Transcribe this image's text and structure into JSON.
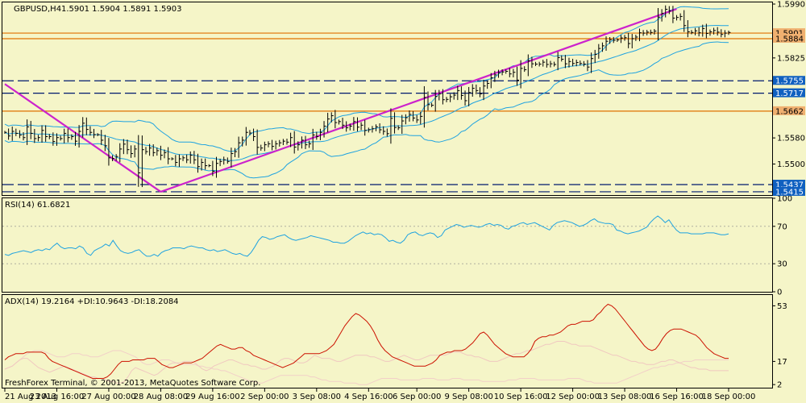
{
  "header": {
    "symbol": "GBPUSD,H4",
    "ohlc": "1.5901 1.5904 1.5891 1.5903"
  },
  "footer": {
    "copyright": "FreshForex Terminal, © 2001-2013, MetaQuotes Software Corp."
  },
  "colors": {
    "background": "#F5F5C8",
    "grid": "#000000",
    "bars": "#000000",
    "bollinger": "#1FA3E0",
    "trendline": "#CC22CC",
    "level_line": "#E07000",
    "rsi": "#1FA3E0",
    "adx": "#CC1100",
    "plus_di": "#F0C8C0",
    "minus_di": "#F2D0C8",
    "label_orange_bg": "#F0B070",
    "label_blue_bg": "#1060C0"
  },
  "chart_data": [
    {
      "type": "candlestick",
      "title": "GBPUSD,H4",
      "x_ticks": [
        "21 Aug 2013",
        "23 Aug 16:00",
        "27 Aug 00:00",
        "28 Aug 08:00",
        "29 Aug 16:00",
        "2 Sep 00:00",
        "3 Sep 08:00",
        "4 Sep 16:00",
        "6 Sep 00:00",
        "9 Sep 08:00",
        "10 Sep 16:00",
        "12 Sep 00:00",
        "13 Sep 08:00",
        "16 Sep 16:00",
        "18 Sep 00:00"
      ],
      "y_ticks": [
        1.5415,
        1.5437,
        1.55,
        1.558,
        1.5662,
        1.5717,
        1.5755,
        1.5825,
        1.5884,
        1.5901,
        1.599
      ],
      "ylim": [
        1.5405,
        1.5995
      ],
      "ohlc_values": [
        1.5901,
        1.5904,
        1.5891,
        1.5903
      ],
      "price_labels": [
        {
          "value": 1.5901,
          "text": "1.5901",
          "style": "orange"
        },
        {
          "value": 1.5884,
          "text": "1.5884",
          "style": "orange"
        },
        {
          "value": 1.5755,
          "text": "1.5755",
          "style": "blue"
        },
        {
          "value": 1.5717,
          "text": "1.5717",
          "style": "blue"
        },
        {
          "value": 1.5662,
          "text": "1.5662",
          "style": "orange"
        },
        {
          "value": 1.5437,
          "text": "1.5437",
          "style": "blue"
        },
        {
          "value": 1.5415,
          "text": "1.5415",
          "style": "blue"
        }
      ],
      "close": [
        1.5597,
        1.5586,
        1.56,
        1.5594,
        1.5589,
        1.5581,
        1.5614,
        1.5594,
        1.5578,
        1.5581,
        1.5603,
        1.5584,
        1.5584,
        1.5569,
        1.5581,
        1.5578,
        1.5594,
        1.5581,
        1.5584,
        1.557,
        1.56,
        1.5625,
        1.5606,
        1.5597,
        1.559,
        1.559,
        1.5573,
        1.5556,
        1.5519,
        1.5517,
        1.5523,
        1.5546,
        1.5561,
        1.5544,
        1.5532,
        1.5546,
        1.5473,
        1.5544,
        1.5538,
        1.5549,
        1.5535,
        1.5541,
        1.5527,
        1.5535,
        1.5516,
        1.5516,
        1.5505,
        1.5516,
        1.5519,
        1.5513,
        1.5527,
        1.5513,
        1.5492,
        1.5505,
        1.5495,
        1.5495,
        1.5478,
        1.5502,
        1.5508,
        1.5513,
        1.5508,
        1.5532,
        1.5538,
        1.5565,
        1.5573,
        1.5597,
        1.5595,
        1.5584,
        1.5551,
        1.5549,
        1.5559,
        1.5562,
        1.5554,
        1.5562,
        1.5565,
        1.557,
        1.5567,
        1.5581,
        1.5552,
        1.5559,
        1.5573,
        1.5559,
        1.5562,
        1.5589,
        1.5584,
        1.5597,
        1.5616,
        1.5638,
        1.5648,
        1.5627,
        1.563,
        1.5619,
        1.5611,
        1.5616,
        1.563,
        1.5613,
        1.5619,
        1.5603,
        1.5605,
        1.5608,
        1.5614,
        1.5605,
        1.56,
        1.5593,
        1.564,
        1.5612,
        1.5611,
        1.5632,
        1.5642,
        1.5652,
        1.5641,
        1.5635,
        1.5646,
        1.5704,
        1.5682,
        1.568,
        1.5707,
        1.5715,
        1.5697,
        1.5698,
        1.5706,
        1.5711,
        1.5725,
        1.571,
        1.5694,
        1.5719,
        1.5732,
        1.5725,
        1.5715,
        1.5739,
        1.5747,
        1.5764,
        1.5773,
        1.578,
        1.5782,
        1.5784,
        1.5776,
        1.5781,
        1.5757,
        1.5793,
        1.5789,
        1.5816,
        1.5807,
        1.5806,
        1.5806,
        1.5812,
        1.5805,
        1.5807,
        1.5805,
        1.5826,
        1.5821,
        1.5807,
        1.5814,
        1.5808,
        1.5811,
        1.5808,
        1.5806,
        1.5797,
        1.5823,
        1.5836,
        1.5854,
        1.5862,
        1.5876,
        1.5881,
        1.5879,
        1.588,
        1.5886,
        1.5887,
        1.5869,
        1.5884,
        1.5889,
        1.5902,
        1.5901,
        1.5904,
        1.5903,
        1.5907,
        1.595,
        1.5961,
        1.5974,
        1.5969,
        1.5947,
        1.5949,
        1.5952,
        1.5924,
        1.5905,
        1.5903,
        1.5908,
        1.5902,
        1.5915,
        1.59,
        1.5905,
        1.5909,
        1.5904,
        1.5897,
        1.5901,
        1.5903
      ],
      "trendlines": [
        {
          "x": [
            "21 Aug 2013",
            "28 Aug 08:00"
          ],
          "y": [
            1.5745,
            1.5415
          ],
          "label": ""
        },
        {
          "x": [
            "28 Aug 08:00",
            "16 Sep 16:00"
          ],
          "y": [
            1.5415,
            1.5975
          ],
          "label": ""
        }
      ],
      "grid": false
    },
    {
      "type": "line",
      "title": "RSI(14) 61.6821",
      "ylim": [
        0,
        100
      ],
      "y_ticks": [
        0,
        30,
        70,
        100
      ],
      "series": [
        {
          "name": "RSI(14)",
          "values": [
            40,
            39,
            41,
            42,
            43,
            44,
            43,
            42,
            44,
            45,
            44,
            46,
            45,
            49,
            52,
            48,
            46,
            47,
            47,
            46,
            49,
            47,
            41,
            39,
            44,
            46,
            48,
            51,
            49,
            55,
            49,
            44,
            42,
            41,
            42,
            44,
            45,
            41,
            38,
            38,
            40,
            38,
            42,
            44,
            45,
            47,
            47,
            47,
            46,
            48,
            49,
            48,
            47,
            47,
            45,
            44,
            45,
            43,
            44,
            45,
            43,
            41,
            40,
            41,
            39,
            38,
            42,
            48,
            55,
            59,
            58,
            56,
            57,
            59,
            60,
            61,
            58,
            56,
            55,
            56,
            57,
            58,
            60,
            59,
            58,
            57,
            56,
            55,
            53,
            53,
            52,
            52,
            54,
            57,
            60,
            62,
            64,
            62,
            63,
            61,
            62,
            61,
            58,
            54,
            55,
            53,
            52,
            55,
            61,
            63,
            64,
            61,
            60,
            62,
            63,
            62,
            58,
            60,
            66,
            68,
            70,
            72,
            71,
            69,
            70,
            71,
            70,
            69,
            70,
            72,
            73,
            71,
            72,
            71,
            68,
            67,
            70,
            71,
            73,
            74,
            72,
            73,
            74,
            72,
            70,
            68,
            66,
            71,
            74,
            75,
            76,
            75,
            74,
            72,
            70,
            71,
            73,
            76,
            78,
            75,
            74,
            73,
            73,
            72,
            66,
            65,
            63,
            62,
            63,
            64,
            65,
            67,
            69,
            74,
            78,
            81,
            78,
            74,
            77,
            71,
            66,
            63,
            63,
            63,
            62,
            62,
            62,
            62,
            63,
            63,
            63,
            62,
            61,
            61,
            62
          ]
        }
      ]
    },
    {
      "type": "line",
      "title": "ADX(14) 19.2164 +DI:10.9643 -DI:18.2084",
      "ylim": [
        0,
        60
      ],
      "y_ticks": [
        2,
        17,
        53
      ],
      "series": [
        {
          "name": "ADX(14)",
          "values": [
            18,
            20,
            21,
            22,
            22,
            22,
            23,
            23,
            23,
            23,
            23,
            22,
            19,
            17,
            16,
            15,
            14,
            13,
            12,
            11,
            10,
            9,
            8,
            7,
            6,
            6,
            6,
            6,
            7,
            9,
            12,
            15,
            17,
            17,
            17,
            18,
            18,
            18,
            18,
            19,
            19,
            19,
            17,
            15,
            14,
            13,
            13,
            14,
            15,
            16,
            16,
            16,
            17,
            18,
            19,
            21,
            23,
            25,
            27,
            28,
            27,
            26,
            25,
            25,
            26,
            26,
            24,
            23,
            21,
            20,
            19,
            18,
            17,
            16,
            15,
            14,
            13,
            14,
            15,
            16,
            18,
            20,
            22,
            22,
            22,
            22,
            22,
            23,
            24,
            26,
            28,
            32,
            36,
            40,
            43,
            46,
            48,
            47,
            45,
            43,
            40,
            36,
            31,
            27,
            24,
            22,
            20,
            19,
            18,
            17,
            16,
            15,
            14,
            14,
            14,
            14,
            15,
            16,
            18,
            21,
            22,
            23,
            23,
            24,
            24,
            24,
            25,
            27,
            29,
            32,
            35,
            36,
            34,
            31,
            28,
            26,
            24,
            22,
            21,
            20,
            20,
            20,
            20,
            22,
            25,
            30,
            32,
            33,
            33,
            34,
            34,
            35,
            36,
            38,
            40,
            41,
            41,
            42,
            43,
            43,
            43,
            44,
            47,
            49,
            52,
            54,
            53,
            51,
            48,
            45,
            42,
            39,
            36,
            33,
            30,
            27,
            25,
            24,
            25,
            28,
            32,
            35,
            37,
            38,
            38,
            38,
            37,
            36,
            35,
            34,
            32,
            29,
            26,
            24,
            22,
            21,
            20,
            19,
            19
          ]
        },
        {
          "name": "+DI",
          "values": [
            12,
            13,
            14,
            16,
            18,
            19,
            19,
            17,
            15,
            13,
            12,
            11,
            10,
            11,
            12,
            13,
            14,
            13,
            12,
            11,
            10,
            9,
            8,
            7,
            7,
            6,
            6,
            5,
            4,
            4,
            3,
            3,
            4,
            7,
            11,
            13,
            12,
            11,
            10,
            9,
            8,
            9,
            11,
            13,
            15,
            16,
            16,
            16,
            17,
            17,
            17,
            16,
            14,
            12,
            11,
            12,
            14,
            15,
            16,
            17,
            18,
            18,
            17,
            16,
            15,
            15,
            14,
            14,
            13,
            12,
            12,
            13,
            14,
            16,
            18,
            19,
            19,
            18,
            17,
            16,
            16,
            17,
            19,
            21,
            20,
            19,
            19,
            19,
            18,
            17,
            17,
            18,
            19,
            20,
            21,
            21,
            21,
            21,
            20,
            20,
            19,
            18,
            17,
            17,
            18,
            19,
            20,
            21,
            20,
            19,
            18,
            18,
            19,
            20,
            21,
            21,
            21,
            21,
            21,
            22,
            23,
            23,
            23,
            22,
            21,
            21,
            20,
            20,
            19,
            18,
            17,
            17,
            17,
            18,
            19,
            20,
            21,
            22,
            22,
            23,
            24,
            24,
            25,
            26,
            27,
            28,
            28,
            29,
            30,
            30,
            30,
            29,
            28,
            28,
            27,
            27,
            27,
            27,
            26,
            25,
            24,
            23,
            22,
            21,
            21,
            20,
            19,
            18,
            17,
            17,
            16,
            16,
            15,
            15,
            15,
            16,
            17,
            17,
            18,
            18,
            17,
            16,
            15,
            14,
            13,
            13,
            12,
            12,
            12,
            11,
            11,
            11,
            11,
            11,
            11
          ]
        },
        {
          "name": "-DI",
          "values": [
            12,
            13,
            14,
            16,
            18,
            20,
            22,
            23,
            24,
            24,
            24,
            23,
            22,
            21,
            20,
            20,
            20,
            21,
            22,
            22,
            22,
            21,
            21,
            20,
            20,
            20,
            21,
            22,
            23,
            24,
            24,
            24,
            23,
            22,
            21,
            20,
            18,
            16,
            15,
            15,
            16,
            17,
            18,
            18,
            18,
            17,
            16,
            15,
            15,
            15,
            15,
            15,
            14,
            14,
            13,
            13,
            12,
            12,
            11,
            11,
            10,
            9,
            8,
            7,
            6,
            5,
            4,
            4,
            3,
            3,
            4,
            5,
            6,
            7,
            8,
            8,
            8,
            8,
            8,
            8,
            8,
            8,
            7,
            7,
            6,
            5,
            5,
            4,
            4,
            4,
            4,
            3,
            3,
            3,
            3,
            2,
            2,
            2,
            3,
            4,
            5,
            6,
            6,
            6,
            6,
            6,
            5,
            5,
            5,
            5,
            5,
            5,
            6,
            6,
            6,
            6,
            5,
            5,
            5,
            5,
            6,
            6,
            6,
            5,
            5,
            5,
            5,
            5,
            4,
            4,
            4,
            4,
            4,
            4,
            4,
            5,
            5,
            5,
            6,
            6,
            6,
            6,
            6,
            5,
            5,
            5,
            5,
            5,
            5,
            5,
            5,
            6,
            6,
            6,
            6,
            5,
            4,
            4,
            3,
            3,
            3,
            3,
            3,
            3,
            3,
            4,
            5,
            6,
            7,
            8,
            9,
            10,
            11,
            12,
            13,
            13,
            14,
            14,
            15,
            15,
            16,
            16,
            17,
            17,
            17,
            18,
            18,
            18,
            18,
            18,
            18,
            18,
            18,
            18,
            18
          ]
        }
      ]
    }
  ]
}
